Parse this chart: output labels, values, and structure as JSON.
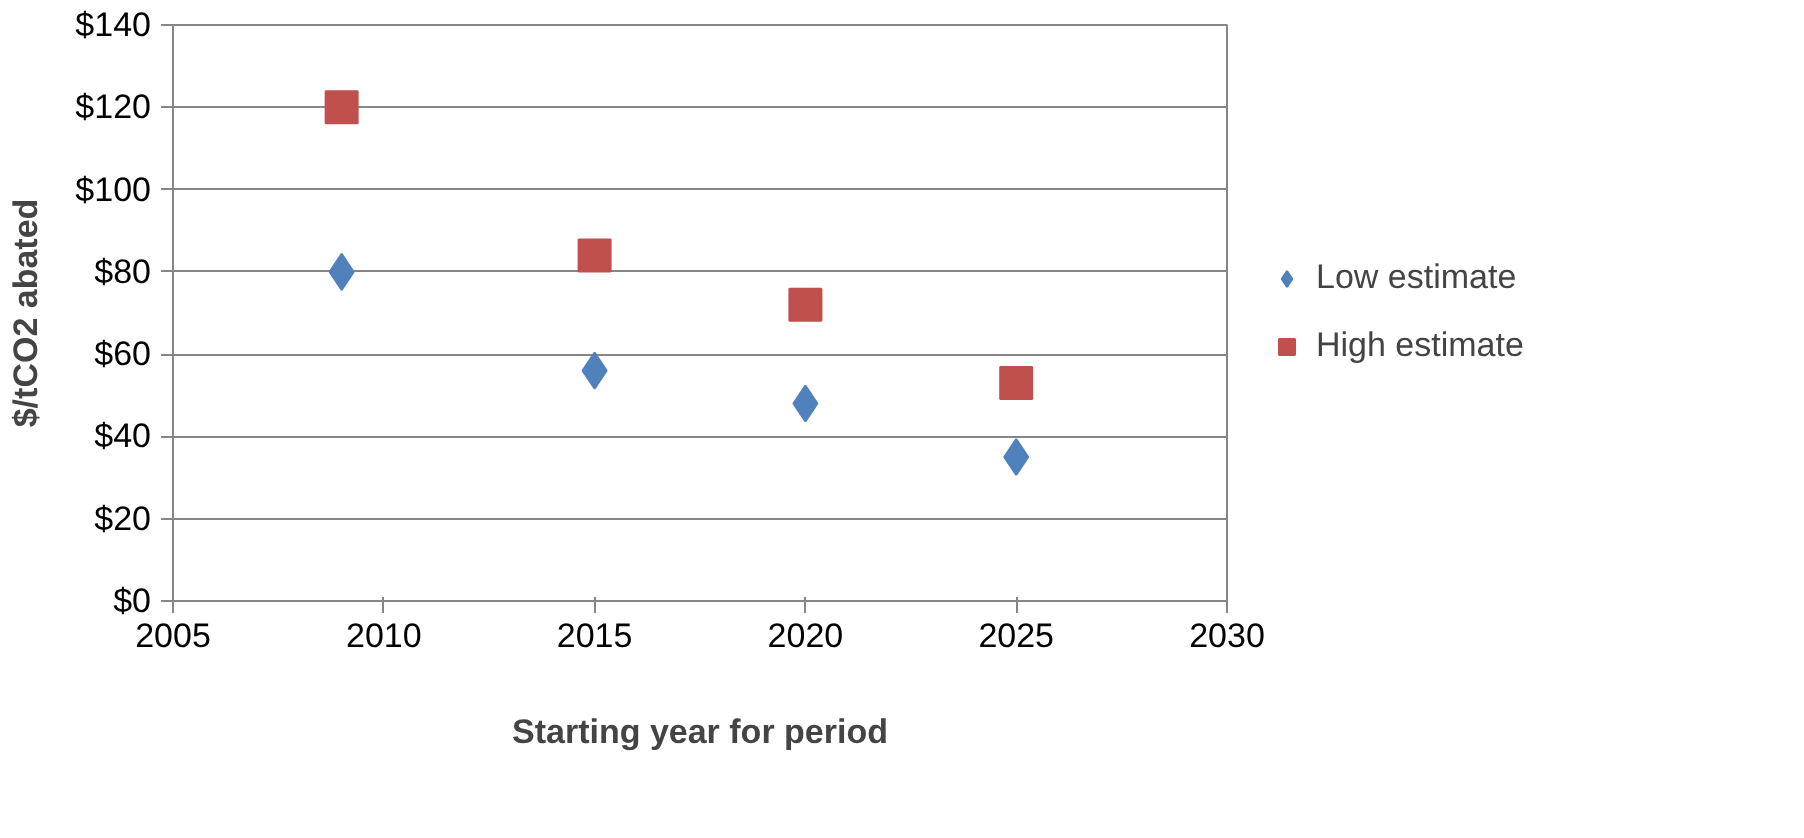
{
  "chart_data": {
    "type": "scatter",
    "xlabel": "Starting year for period",
    "ylabel": "$/tCO2 abated",
    "xlim": [
      2005,
      2030
    ],
    "xticks": [
      2005,
      2010,
      2015,
      2020,
      2025,
      2030
    ],
    "ylim": [
      0,
      140
    ],
    "yticks": [
      {
        "value": 0,
        "label": "$0"
      },
      {
        "value": 20,
        "label": "$20"
      },
      {
        "value": 40,
        "label": "$40"
      },
      {
        "value": 60,
        "label": "$60"
      },
      {
        "value": 80,
        "label": "$80"
      },
      {
        "value": 100,
        "label": "$100"
      },
      {
        "value": 120,
        "label": "$120"
      },
      {
        "value": 140,
        "label": "$140"
      }
    ],
    "grid": "y",
    "legend": "right",
    "series": [
      {
        "name": "Low estimate",
        "color": "#4f81bd",
        "marker": "diamond",
        "x": [
          2009,
          2015,
          2020,
          2025
        ],
        "values": [
          80,
          56,
          48,
          35
        ]
      },
      {
        "name": "High estimate",
        "color": "#c0504d",
        "marker": "square",
        "x": [
          2009,
          2015,
          2020,
          2025
        ],
        "values": [
          120,
          84,
          72,
          53
        ]
      }
    ]
  }
}
